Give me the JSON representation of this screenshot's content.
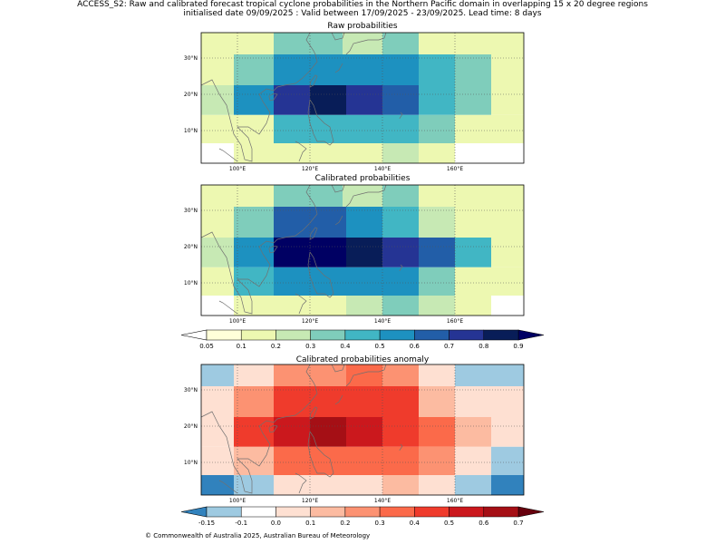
{
  "figure": {
    "title_line1": "ACCESS_S2: Raw and calibrated forecast tropical cyclone probabilities in the Northern Pacific domain in overlapping 15 x 20 degree regions",
    "title_line2": "initialised date 09/09/2025 :  Valid between 17/09/2025 - 23/09/2025. Lead time: 8 days",
    "credit": "© Commonwealth of Australia 2025, Australian Bureau of Meteorology"
  },
  "colors": {
    "prob_scale": [
      "#ffffff",
      "#ffffd9",
      "#edf8b1",
      "#c7e9b4",
      "#7fcdbb",
      "#41b6c4",
      "#1d91c0",
      "#225ea8",
      "#253494",
      "#081d58",
      "#000063"
    ],
    "anom_scale": [
      "#2a7ab8",
      "#3182bd",
      "#9ecae1",
      "#ffffff",
      "#fee0d2",
      "#fcbba1",
      "#fc9272",
      "#fb6a4a",
      "#ef3b2c",
      "#cb181d",
      "#a50f15",
      "#67000d"
    ]
  },
  "chart_data": [
    {
      "type": "heatmap",
      "id": "raw",
      "title": "Raw probabilities",
      "xlim": [
        90,
        179
      ],
      "ylim": [
        1,
        37
      ],
      "x_ticks": [
        "100°E",
        "120°E",
        "140°E",
        "160°E"
      ],
      "x_tick_values": [
        100,
        120,
        140,
        160
      ],
      "y_ticks": [
        "10°N",
        "20°N",
        "30°N"
      ],
      "y_tick_values": [
        10,
        20,
        30
      ],
      "grid": "dotted",
      "rows": [
        {
          "y0": 31,
          "y1": 37,
          "cells": [
            [
              90,
              99,
              0.1
            ],
            [
              99,
              110,
              0.15
            ],
            [
              110,
              129,
              0.35
            ],
            [
              129,
              140,
              0.25
            ],
            [
              140,
              150,
              0.35
            ],
            [
              150,
              160,
              0.15
            ],
            [
              160,
              179,
              0.15
            ]
          ]
        },
        {
          "y0": 22.5,
          "y1": 31,
          "cells": [
            [
              90,
              99,
              0.15
            ],
            [
              99,
              110,
              0.35
            ],
            [
              110,
              150,
              0.55
            ],
            [
              150,
              160,
              0.45
            ],
            [
              160,
              170,
              0.35
            ],
            [
              170,
              179,
              0.15
            ]
          ]
        },
        {
          "y0": 14.3,
          "y1": 22.5,
          "cells": [
            [
              90,
              99,
              0.25
            ],
            [
              99,
              110,
              0.55
            ],
            [
              110,
              120,
              0.75
            ],
            [
              120,
              130,
              0.85
            ],
            [
              130,
              140,
              0.75
            ],
            [
              140,
              150,
              0.65
            ],
            [
              150,
              160,
              0.45
            ],
            [
              160,
              170,
              0.35
            ],
            [
              170,
              179,
              0.15
            ]
          ]
        },
        {
          "y0": 6.5,
          "y1": 14.3,
          "cells": [
            [
              90,
              99,
              0.15
            ],
            [
              99,
              110,
              0.15
            ],
            [
              110,
              150,
              0.45
            ],
            [
              150,
              160,
              0.35
            ],
            [
              160,
              170,
              0.15
            ],
            [
              170,
              179,
              0.1
            ]
          ]
        },
        {
          "y0": 1,
          "y1": 6.5,
          "cells": [
            [
              90,
              99,
              0.0
            ],
            [
              99,
              110,
              0.1
            ],
            [
              110,
              140,
              0.15
            ],
            [
              140,
              150,
              0.25
            ],
            [
              150,
              160,
              0.15
            ],
            [
              160,
              179,
              0.0
            ]
          ]
        }
      ]
    },
    {
      "type": "heatmap",
      "id": "calibrated",
      "title": "Calibrated probabilities",
      "xlim": [
        90,
        179
      ],
      "ylim": [
        1,
        37
      ],
      "x_ticks": [
        "100°E",
        "120°E",
        "140°E",
        "160°E"
      ],
      "x_tick_values": [
        100,
        120,
        140,
        160
      ],
      "y_ticks": [
        "10°N",
        "20°N",
        "30°N"
      ],
      "y_tick_values": [
        10,
        20,
        30
      ],
      "grid": "dotted",
      "rows": [
        {
          "y0": 31,
          "y1": 37,
          "cells": [
            [
              90,
              99,
              0.1
            ],
            [
              99,
              110,
              0.15
            ],
            [
              110,
              129,
              0.35
            ],
            [
              129,
              140,
              0.25
            ],
            [
              140,
              150,
              0.35
            ],
            [
              150,
              160,
              0.15
            ],
            [
              160,
              179,
              0.1
            ]
          ]
        },
        {
          "y0": 22.5,
          "y1": 31,
          "cells": [
            [
              90,
              99,
              0.15
            ],
            [
              99,
              110,
              0.35
            ],
            [
              110,
              130,
              0.65
            ],
            [
              130,
              140,
              0.55
            ],
            [
              140,
              150,
              0.45
            ],
            [
              150,
              160,
              0.25
            ],
            [
              160,
              170,
              0.15
            ],
            [
              170,
              179,
              0.15
            ]
          ]
        },
        {
          "y0": 14.3,
          "y1": 22.5,
          "cells": [
            [
              90,
              99,
              0.25
            ],
            [
              99,
              110,
              0.55
            ],
            [
              110,
              130,
              0.95
            ],
            [
              130,
              140,
              0.85
            ],
            [
              140,
              150,
              0.75
            ],
            [
              150,
              160,
              0.65
            ],
            [
              160,
              170,
              0.45
            ],
            [
              170,
              179,
              0.15
            ]
          ]
        },
        {
          "y0": 6.5,
          "y1": 14.3,
          "cells": [
            [
              90,
              99,
              0.15
            ],
            [
              99,
              110,
              0.45
            ],
            [
              110,
              150,
              0.55
            ],
            [
              150,
              160,
              0.35
            ],
            [
              160,
              170,
              0.15
            ],
            [
              170,
              179,
              0.1
            ]
          ]
        },
        {
          "y0": 1,
          "y1": 6.5,
          "cells": [
            [
              90,
              99,
              0.0
            ],
            [
              99,
              110,
              0.1
            ],
            [
              110,
              130,
              0.15
            ],
            [
              130,
              140,
              0.25
            ],
            [
              140,
              150,
              0.35
            ],
            [
              150,
              160,
              0.25
            ],
            [
              160,
              170,
              0.1
            ],
            [
              170,
              179,
              0.0
            ]
          ]
        }
      ]
    },
    {
      "type": "heatmap",
      "id": "anomaly",
      "title": "Calibrated probabilities anomaly",
      "xlim": [
        90,
        179
      ],
      "ylim": [
        1,
        37
      ],
      "x_ticks": [
        "100°E",
        "120°E",
        "140°E",
        "160°E"
      ],
      "x_tick_values": [
        100,
        120,
        140,
        160
      ],
      "y_ticks": [
        "10°N",
        "20°N",
        "30°N"
      ],
      "y_tick_values": [
        10,
        20,
        30
      ],
      "grid": "dotted",
      "rows": [
        {
          "y0": 31,
          "y1": 37,
          "cells": [
            [
              90,
              99,
              -0.12
            ],
            [
              99,
              110,
              0.0
            ],
            [
              110,
              130,
              0.25
            ],
            [
              130,
              140,
              0.3
            ],
            [
              140,
              150,
              0.25
            ],
            [
              150,
              160,
              0.0
            ],
            [
              160,
              179,
              -0.12
            ]
          ]
        },
        {
          "y0": 22.5,
          "y1": 31,
          "cells": [
            [
              90,
              99,
              0.0
            ],
            [
              99,
              110,
              0.25
            ],
            [
              110,
              130,
              0.45
            ],
            [
              130,
              150,
              0.4
            ],
            [
              150,
              160,
              0.15
            ],
            [
              160,
              170,
              0.0
            ],
            [
              170,
              179,
              0.0
            ]
          ]
        },
        {
          "y0": 14.3,
          "y1": 22.5,
          "cells": [
            [
              90,
              99,
              0.05
            ],
            [
              99,
              110,
              0.45
            ],
            [
              110,
              120,
              0.55
            ],
            [
              120,
              130,
              0.65
            ],
            [
              130,
              140,
              0.55
            ],
            [
              140,
              150,
              0.45
            ],
            [
              150,
              160,
              0.35
            ],
            [
              160,
              170,
              0.15
            ],
            [
              170,
              179,
              0.0
            ]
          ]
        },
        {
          "y0": 6.5,
          "y1": 14.3,
          "cells": [
            [
              90,
              99,
              0.0
            ],
            [
              99,
              110,
              0.15
            ],
            [
              110,
              150,
              0.35
            ],
            [
              150,
              160,
              0.2
            ],
            [
              160,
              170,
              0.0
            ],
            [
              170,
              179,
              -0.12
            ]
          ]
        },
        {
          "y0": 1,
          "y1": 6.5,
          "cells": [
            [
              90,
              99,
              -0.17
            ],
            [
              99,
              110,
              -0.12
            ],
            [
              110,
              120,
              0.0
            ],
            [
              120,
              140,
              0.05
            ],
            [
              140,
              150,
              0.15
            ],
            [
              150,
              160,
              0.05
            ],
            [
              160,
              170,
              -0.12
            ],
            [
              170,
              179,
              -0.17
            ]
          ]
        }
      ]
    }
  ],
  "colorbars": {
    "prob": {
      "bounds": [
        0.05,
        0.1,
        0.2,
        0.3,
        0.4,
        0.5,
        0.6,
        0.7,
        0.8,
        0.9
      ],
      "labels": [
        "0.05",
        "0.1",
        "0.2",
        "0.3",
        "0.4",
        "0.5",
        "0.6",
        "0.7",
        "0.8",
        "0.9"
      ],
      "colors": [
        "#ffffd9",
        "#edf8b1",
        "#c7e9b4",
        "#7fcdbb",
        "#41b6c4",
        "#1d91c0",
        "#225ea8",
        "#253494",
        "#081d58"
      ],
      "under": "#ffffff",
      "over": "#000063"
    },
    "anom": {
      "bounds": [
        -0.15,
        -0.1,
        0.0,
        0.1,
        0.2,
        0.3,
        0.4,
        0.5,
        0.6,
        0.7
      ],
      "labels": [
        "-0.15",
        "-0.1",
        "0.0",
        "0.1",
        "0.2",
        "0.3",
        "0.4",
        "0.5",
        "0.6",
        "0.7"
      ],
      "colors": [
        "#9ecae1",
        "#ffffff",
        "#fee0d2",
        "#fcbba1",
        "#fc9272",
        "#fb6a4a",
        "#ef3b2c",
        "#cb181d",
        "#a50f15"
      ],
      "under": "#3182bd",
      "over": "#67000d"
    }
  }
}
